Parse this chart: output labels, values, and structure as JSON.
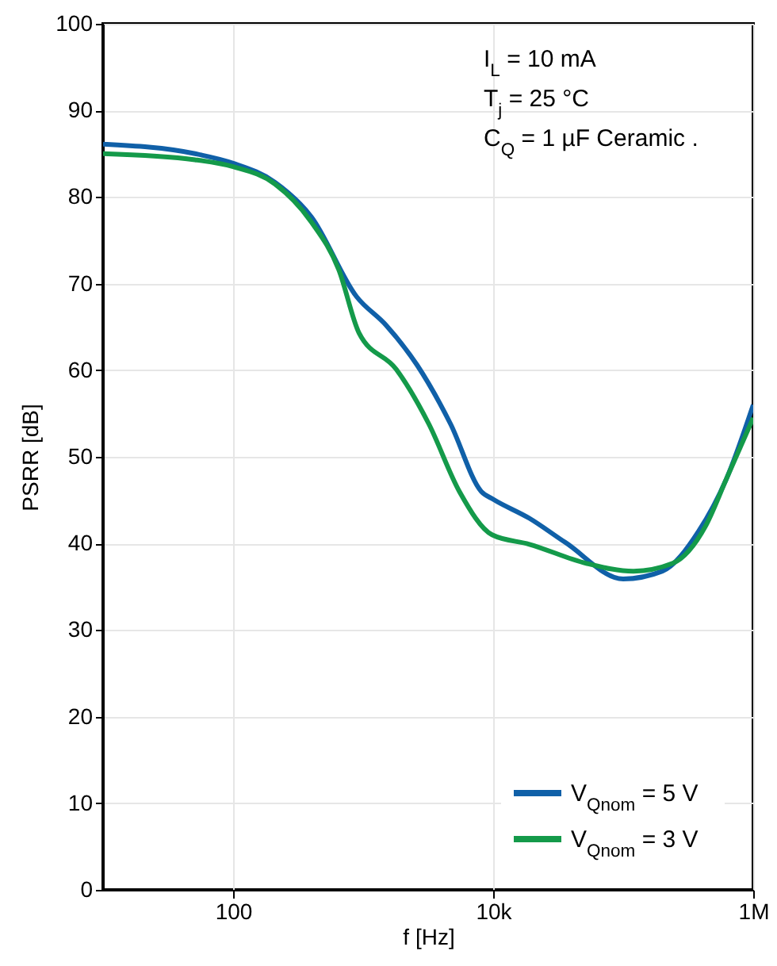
{
  "chart_data": {
    "type": "line",
    "xlabel": "f [Hz]",
    "ylabel": "PSRR [dB]",
    "log": "x",
    "xlim": [
      10,
      1000000
    ],
    "xticks": [
      100,
      {
        "value": 10000,
        "label": "10k"
      },
      {
        "value": 1000000,
        "label": "1M"
      }
    ],
    "ylim": [
      0,
      100
    ],
    "yticks": [
      0,
      10,
      20,
      30,
      40,
      50,
      60,
      70,
      80,
      90,
      100
    ],
    "grid": true,
    "legend": "bottom right",
    "annotations": [
      "I$_{L}$ = 10 mA",
      "T$_{j}$ = 25 °C",
      "C$_{Q}$ = 1 µF Ceramic ."
    ],
    "series": [
      {
        "name": "V$_{Qnom}$ = 5 V",
        "color": "#1060a8",
        "x": [
          10,
          51,
          100,
          210,
          400,
          890,
          1500,
          2600,
          4700,
          8100,
          10000,
          19000,
          36000,
          100000,
          200000,
          380000,
          620000,
          1000000
        ],
        "values": [
          86.1,
          85.0,
          83.9,
          81.7,
          77.7,
          68.5,
          65.2,
          60.6,
          53.8,
          46.0,
          45.1,
          42.9,
          40.1,
          35.9,
          36.8,
          41.4,
          47.4,
          56.0
        ]
      },
      {
        "name": "V$_{Qnom}$ = 3 V",
        "color": "#149a4a",
        "x": [
          10,
          51,
          100,
          210,
          400,
          650,
          930,
          1800,
          3200,
          5500,
          9800,
          19000,
          52000,
          120000,
          240000,
          430000,
          620000,
          1000000
        ],
        "values": [
          85.0,
          84.3,
          83.5,
          81.5,
          77.1,
          71.6,
          64.3,
          60.1,
          53.8,
          46.0,
          41.0,
          39.9,
          37.7,
          36.8,
          37.7,
          42.0,
          47.4,
          54.5
        ]
      }
    ]
  }
}
